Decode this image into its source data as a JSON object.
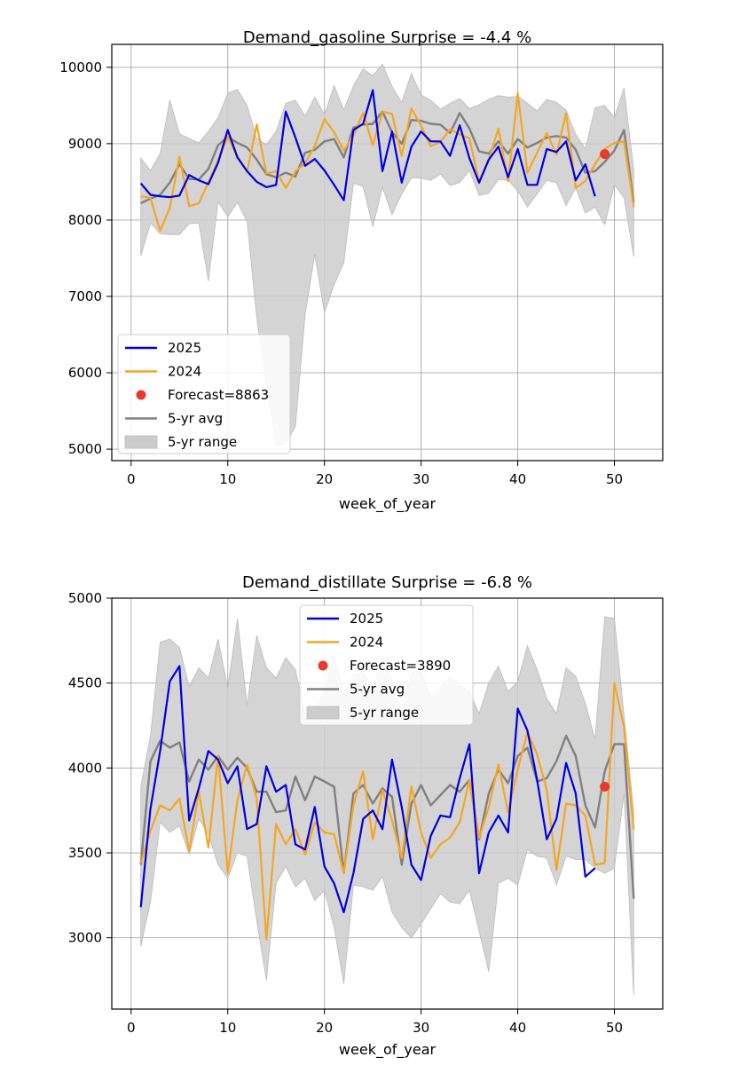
{
  "colors": {
    "y2025": "#0000dd",
    "y2024": "#f5a623",
    "forecast": "#e8392b",
    "avg": "#808080",
    "range": "#cccccc",
    "grid": "#b0b0b0"
  },
  "chart_data": [
    {
      "type": "line",
      "title": "Demand_gasoline Surprise = -4.4 %",
      "xlabel": "week_of_year",
      "ylabel": "",
      "xlim": [
        -2,
        55
      ],
      "ylim": [
        4850,
        10300
      ],
      "xticks": [
        0,
        10,
        20,
        30,
        40,
        50
      ],
      "yticks": [
        5000,
        6000,
        7000,
        8000,
        9000,
        10000
      ],
      "grid": true,
      "legend_position": "lower-left",
      "legend": {
        "y2025": "2025",
        "y2024": "2024",
        "forecast": "Forecast=8863",
        "avg": "5-yr avg",
        "range": "5-yr range"
      },
      "forecast": {
        "x": 49,
        "y": 8863
      },
      "series": [
        {
          "name": "2025",
          "key": "y2025",
          "x_start": 1,
          "values": [
            8480,
            8330,
            8310,
            8300,
            8320,
            8590,
            8520,
            8470,
            8750,
            9180,
            8820,
            8640,
            8500,
            8430,
            8460,
            9420,
            9080,
            8710,
            8800,
            8650,
            8460,
            8260,
            9180,
            9260,
            9700,
            8640,
            9160,
            8490,
            8960,
            9160,
            9030,
            9030,
            8840,
            9240,
            8810,
            8490,
            8790,
            8960,
            8560,
            8930,
            8460,
            8460,
            8930,
            8890,
            9030,
            8520,
            8730,
            8310
          ]
        },
        {
          "name": "2024",
          "key": "y2024",
          "x_start": 1,
          "values": [
            8310,
            8290,
            7860,
            8160,
            8830,
            8180,
            8220,
            8490,
            8780,
            9090,
            8830,
            8630,
            9250,
            8610,
            8640,
            8420,
            8640,
            8740,
            8970,
            9320,
            9150,
            8910,
            9110,
            9400,
            8980,
            9420,
            9390,
            8840,
            9460,
            9240,
            8970,
            9020,
            9190,
            9120,
            9070,
            8500,
            8790,
            9200,
            8510,
            9660,
            8620,
            8880,
            9140,
            8860,
            9400,
            8420,
            8510,
            8730,
            8930,
            9010,
            9030,
            8170
          ]
        },
        {
          "name": "5-yr avg",
          "key": "avg",
          "x_start": 1,
          "values": [
            8220,
            8280,
            8330,
            8490,
            8730,
            8540,
            8530,
            8670,
            8980,
            9090,
            9010,
            8950,
            8790,
            8600,
            8560,
            8620,
            8570,
            8880,
            8920,
            9030,
            9060,
            8820,
            9210,
            9250,
            9260,
            9420,
            9150,
            9000,
            9310,
            9300,
            9260,
            9250,
            9140,
            9400,
            9200,
            8900,
            8870,
            9030,
            8870,
            9060,
            8950,
            9010,
            9080,
            9100,
            9080,
            8920,
            8620,
            8640,
            8760,
            8910,
            9180,
            8230
          ]
        },
        {
          "name": "5-yr range upper",
          "key": "range_upper",
          "x_start": 1,
          "values": [
            8810,
            8650,
            8870,
            9570,
            9130,
            9070,
            9010,
            9160,
            9340,
            9660,
            9710,
            9500,
            9070,
            8990,
            9160,
            9530,
            9570,
            9360,
            9610,
            9380,
            9760,
            9440,
            9760,
            9980,
            9890,
            10040,
            9750,
            9540,
            9920,
            9640,
            9570,
            9450,
            9530,
            9590,
            9460,
            9510,
            9580,
            9630,
            9610,
            9620,
            9530,
            9430,
            9580,
            9540,
            9440,
            9120,
            8930,
            9470,
            9500,
            9340,
            9730,
            8660
          ]
        },
        {
          "name": "5-yr range lower",
          "key": "range_lower",
          "x_start": 1,
          "values": [
            7530,
            7960,
            7820,
            7810,
            7810,
            7950,
            7960,
            7200,
            8240,
            8040,
            8230,
            7980,
            6720,
            5830,
            5050,
            5070,
            5300,
            6760,
            7550,
            6790,
            7150,
            7440,
            8480,
            8440,
            7910,
            8430,
            8070,
            8340,
            8550,
            8550,
            8520,
            8600,
            8450,
            8490,
            8650,
            8320,
            8350,
            8530,
            8520,
            8380,
            8170,
            8340,
            8520,
            8490,
            8190,
            8420,
            8090,
            8170,
            7940,
            8460,
            8290,
            7520
          ]
        }
      ]
    },
    {
      "type": "line",
      "title": "Demand_distillate Surprise = -6.8 %",
      "xlabel": "week_of_year",
      "ylabel": "",
      "xlim": [
        -2,
        55
      ],
      "ylim": [
        2580,
        5000
      ],
      "xticks": [
        0,
        10,
        20,
        30,
        40,
        50
      ],
      "yticks": [
        3000,
        3500,
        4000,
        4500,
        5000
      ],
      "grid": true,
      "legend_position": "upper-center",
      "legend": {
        "y2025": "2025",
        "y2024": "2024",
        "forecast": "Forecast=3890",
        "avg": "5-yr avg",
        "range": "5-yr range"
      },
      "forecast": {
        "x": 49,
        "y": 3890
      },
      "series": [
        {
          "name": "2025",
          "key": "y2025",
          "x_start": 1,
          "values": [
            3180,
            3760,
            4100,
            4510,
            4600,
            3690,
            3880,
            4100,
            4050,
            3910,
            4010,
            3640,
            3670,
            4010,
            3860,
            3900,
            3550,
            3520,
            3770,
            3420,
            3320,
            3150,
            3380,
            3700,
            3750,
            3640,
            4050,
            3770,
            3430,
            3340,
            3600,
            3720,
            3710,
            3940,
            4140,
            3380,
            3620,
            3720,
            3620,
            4350,
            4220,
            3930,
            3580,
            3700,
            4030,
            3850,
            3360,
            3410
          ]
        },
        {
          "name": "2024",
          "key": "y2024",
          "x_start": 1,
          "values": [
            3440,
            3630,
            3780,
            3750,
            3820,
            3510,
            3860,
            3530,
            4070,
            3380,
            3810,
            4020,
            3820,
            2990,
            3670,
            3550,
            3640,
            3490,
            3680,
            3620,
            3610,
            3380,
            3780,
            3980,
            3580,
            3870,
            3690,
            3470,
            3890,
            3620,
            3470,
            3550,
            3590,
            3680,
            3930,
            3590,
            3770,
            4020,
            3740,
            3990,
            4210,
            4080,
            3870,
            3400,
            3790,
            3780,
            3720,
            3430,
            3440,
            4500,
            4240,
            3640
          ]
        },
        {
          "name": "5-yr avg",
          "key": "avg",
          "x_start": 1,
          "values": [
            3430,
            4040,
            4160,
            4120,
            4150,
            3920,
            4050,
            3990,
            4070,
            3990,
            4060,
            4000,
            3860,
            3860,
            3740,
            3750,
            3950,
            3810,
            3950,
            3920,
            3890,
            3380,
            3850,
            3900,
            3790,
            3880,
            3830,
            3430,
            3790,
            3900,
            3780,
            3840,
            3900,
            3860,
            3930,
            3580,
            3850,
            3990,
            3910,
            4070,
            4120,
            3920,
            3940,
            4040,
            4190,
            4070,
            3780,
            3650,
            3980,
            4140,
            4140,
            3230
          ]
        },
        {
          "name": "5-yr range upper",
          "key": "range_upper",
          "x_start": 1,
          "values": [
            3890,
            4190,
            4740,
            4760,
            4710,
            4480,
            4590,
            4530,
            4760,
            4470,
            4880,
            4370,
            4780,
            4590,
            4530,
            4650,
            4580,
            4300,
            4340,
            4450,
            4670,
            4440,
            4550,
            4570,
            4460,
            4640,
            4510,
            4320,
            4560,
            4580,
            4420,
            4470,
            4540,
            4490,
            4450,
            4320,
            4500,
            4600,
            4450,
            4510,
            4720,
            4580,
            4410,
            4320,
            4590,
            4540,
            4380,
            4170,
            4890,
            4880,
            4310,
            3740
          ]
        },
        {
          "name": "5-yr range lower",
          "key": "range_lower",
          "x_start": 1,
          "values": [
            2950,
            3210,
            3680,
            3620,
            3660,
            3490,
            3700,
            3610,
            3430,
            3350,
            3500,
            3480,
            3100,
            2750,
            3320,
            3420,
            3300,
            3350,
            3220,
            3280,
            3060,
            2730,
            3310,
            3300,
            3280,
            3360,
            3150,
            3060,
            3000,
            3080,
            3170,
            3260,
            3210,
            3200,
            3280,
            3040,
            2800,
            3320,
            3350,
            3310,
            3520,
            3480,
            3470,
            3310,
            3480,
            3460,
            3460,
            3410,
            3380,
            3410,
            3850,
            2660
          ]
        }
      ]
    }
  ]
}
